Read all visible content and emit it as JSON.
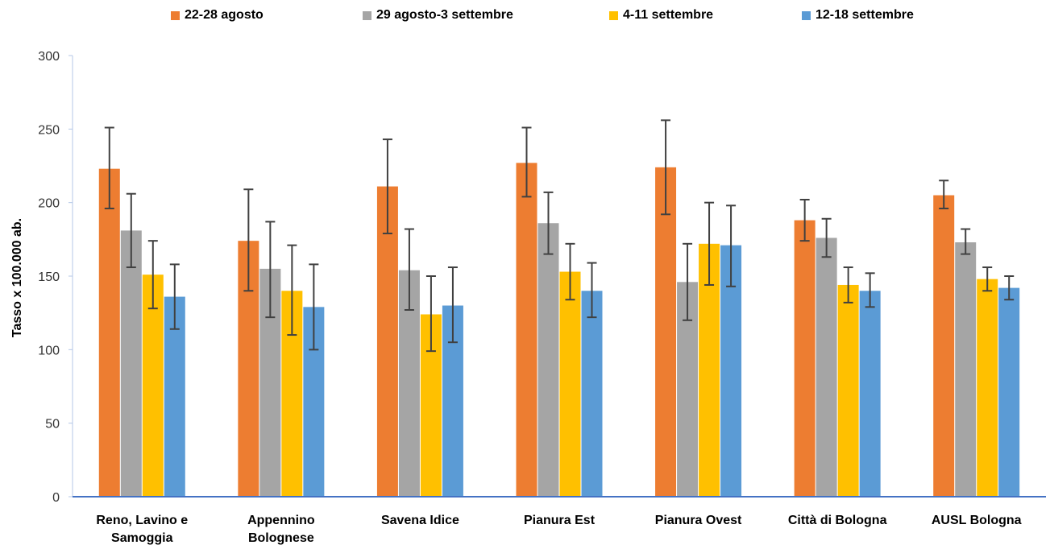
{
  "chart_data": {
    "type": "bar",
    "ylabel": "Tasso x 100.000 ab.",
    "xlabel": "",
    "ylim": [
      0,
      300
    ],
    "yticks": [
      0,
      50,
      100,
      150,
      200,
      250,
      300
    ],
    "grid": false,
    "legend_position": "top",
    "categories": [
      [
        "Reno, Lavino e",
        "Samoggia"
      ],
      [
        "Appennino",
        "Bolognese"
      ],
      [
        "Savena Idice"
      ],
      [
        "Pianura Est"
      ],
      [
        "Pianura Ovest"
      ],
      [
        "Città di Bologna"
      ],
      [
        "AUSL Bologna"
      ]
    ],
    "series": [
      {
        "name": "22-28 agosto",
        "color": "#ED7D31",
        "values": [
          223,
          174,
          211,
          227,
          224,
          188,
          205
        ],
        "error_low": [
          196,
          140,
          179,
          204,
          192,
          174,
          196
        ],
        "error_high": [
          251,
          209,
          243,
          251,
          256,
          202,
          215
        ]
      },
      {
        "name": "29 agosto-3 settembre",
        "color": "#A5A5A5",
        "values": [
          181,
          155,
          154,
          186,
          146,
          176,
          173
        ],
        "error_low": [
          156,
          122,
          127,
          165,
          120,
          163,
          165
        ],
        "error_high": [
          206,
          187,
          182,
          207,
          172,
          189,
          182
        ]
      },
      {
        "name": "4-11 settembre",
        "color": "#FFC000",
        "values": [
          151,
          140,
          124,
          153,
          172,
          144,
          148
        ],
        "error_low": [
          128,
          110,
          99,
          134,
          144,
          132,
          140
        ],
        "error_high": [
          174,
          171,
          150,
          172,
          200,
          156,
          156
        ]
      },
      {
        "name": "12-18 settembre",
        "color": "#5B9BD5",
        "values": [
          136,
          129,
          130,
          140,
          171,
          140,
          142
        ],
        "error_low": [
          114,
          100,
          105,
          122,
          143,
          129,
          134
        ],
        "error_high": [
          158,
          158,
          156,
          159,
          198,
          152,
          150
        ]
      }
    ]
  }
}
